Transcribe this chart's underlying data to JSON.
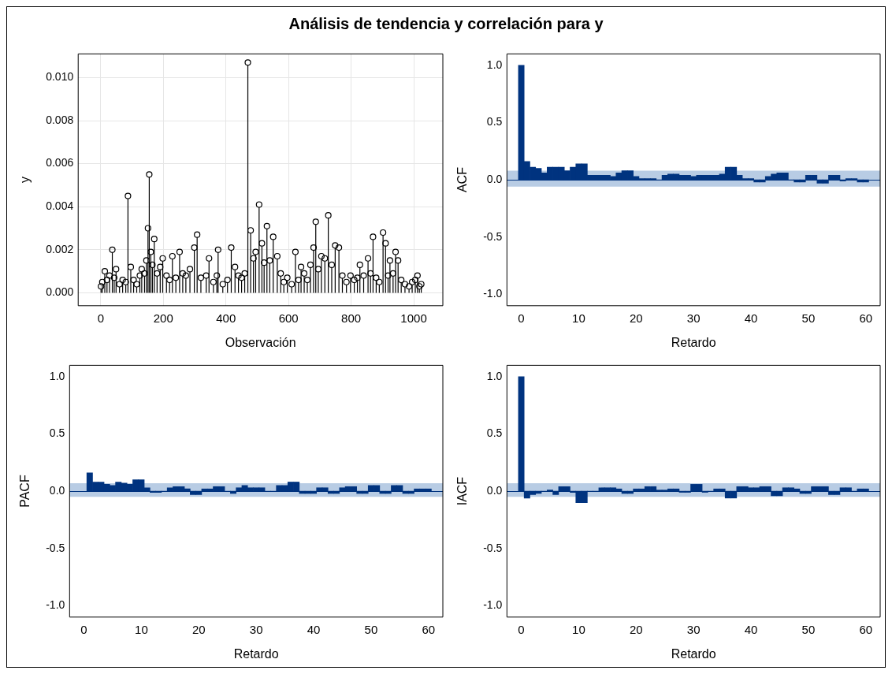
{
  "chart_data": [
    {
      "type": "lollipop",
      "title": "Análisis de tendencia y correlación para y",
      "xlabel": "Observación",
      "ylabel": "y",
      "color": "#000000",
      "marker": "circle",
      "grid": true,
      "x": [
        1,
        5,
        13,
        20,
        28,
        37,
        43,
        49,
        60,
        70,
        80,
        87,
        96,
        105,
        115,
        125,
        131,
        140,
        146,
        151,
        155,
        160,
        165,
        171,
        180,
        190,
        198,
        210,
        220,
        229,
        240,
        252,
        262,
        272,
        285,
        299,
        308,
        320,
        337,
        346,
        360,
        371,
        375,
        390,
        405,
        417,
        429,
        440,
        450,
        460,
        470,
        479,
        488,
        495,
        506,
        515,
        522,
        531,
        540,
        551,
        564,
        575,
        585,
        596,
        610,
        622,
        632,
        640,
        650,
        660,
        670,
        680,
        687,
        695,
        705,
        716,
        727,
        738,
        749,
        761,
        772,
        785,
        798,
        810,
        820,
        828,
        840,
        854,
        862,
        870,
        880,
        890,
        902,
        910,
        918,
        924,
        934,
        942,
        950,
        960,
        972,
        985,
        995,
        1005,
        1012,
        1018,
        1024
      ],
      "values": [
        0.0003,
        0.0005,
        0.001,
        0.0006,
        0.0008,
        0.002,
        0.0007,
        0.0011,
        0.0004,
        0.0006,
        0.0005,
        0.0045,
        0.0012,
        0.0006,
        0.0004,
        0.0008,
        0.0011,
        0.0009,
        0.0015,
        0.003,
        0.0055,
        0.0019,
        0.0013,
        0.0025,
        0.0009,
        0.0012,
        0.0016,
        0.0008,
        0.0006,
        0.0017,
        0.0007,
        0.0019,
        0.0009,
        0.0008,
        0.0011,
        0.0021,
        0.0027,
        0.0007,
        0.0008,
        0.0016,
        0.0005,
        0.0008,
        0.002,
        0.0004,
        0.0006,
        0.0021,
        0.0012,
        0.0008,
        0.0007,
        0.0009,
        0.0107,
        0.0029,
        0.0016,
        0.0019,
        0.0041,
        0.0023,
        0.0014,
        0.0031,
        0.0015,
        0.0026,
        0.0017,
        0.0009,
        0.0005,
        0.0007,
        0.0004,
        0.0019,
        0.0006,
        0.0012,
        0.0009,
        0.0006,
        0.0013,
        0.0021,
        0.0033,
        0.0011,
        0.0017,
        0.0016,
        0.0036,
        0.0013,
        0.0022,
        0.0021,
        0.0008,
        0.0005,
        0.0008,
        0.0006,
        0.0007,
        0.0013,
        0.0008,
        0.0016,
        0.0009,
        0.0026,
        0.0007,
        0.0005,
        0.0028,
        0.0023,
        0.0008,
        0.0015,
        0.0009,
        0.0019,
        0.0015,
        0.0006,
        0.0004,
        0.0003,
        0.0005,
        0.0006,
        0.0008,
        0.0003,
        0.0004
      ],
      "xlim": [
        -72,
        1093
      ],
      "xticks": [
        0,
        200,
        400,
        600,
        800,
        1000
      ],
      "ylim": [
        -0.0006,
        0.0111
      ],
      "yticks": [
        {
          "value": 0,
          "label": "0.000"
        },
        {
          "value": 0.002,
          "label": "0.002"
        },
        {
          "value": 0.004,
          "label": "0.004"
        },
        {
          "value": 0.006,
          "label": "0.006"
        },
        {
          "value": 0.008,
          "label": "0.008"
        },
        {
          "value": 0.01,
          "label": "0.010"
        }
      ]
    },
    {
      "type": "bar",
      "xlabel": "Retardo",
      "ylabel": "ACF",
      "color": "#00337f",
      "x": [
        0,
        1,
        2,
        3,
        4,
        5,
        6,
        7,
        8,
        9,
        10,
        11,
        12,
        13,
        14,
        15,
        16,
        17,
        18,
        19,
        20,
        21,
        22,
        23,
        24,
        25,
        26,
        27,
        28,
        29,
        30,
        31,
        32,
        33,
        34,
        35,
        36,
        37,
        38,
        39,
        40,
        41,
        42,
        43,
        44,
        45,
        46,
        47,
        48,
        49,
        50,
        51,
        52,
        53,
        54,
        55,
        56,
        57,
        58,
        59,
        60
      ],
      "values": [
        1.0,
        0.16,
        0.11,
        0.1,
        0.06,
        0.11,
        0.11,
        0.11,
        0.08,
        0.11,
        0.14,
        0.14,
        0.04,
        0.04,
        0.04,
        0.04,
        0.03,
        0.06,
        0.08,
        0.08,
        0.03,
        0.01,
        0.01,
        0.01,
        0.0,
        0.04,
        0.05,
        0.05,
        0.04,
        0.04,
        0.03,
        0.04,
        0.04,
        0.04,
        0.04,
        0.05,
        0.11,
        0.11,
        0.04,
        0.01,
        0.01,
        -0.02,
        -0.02,
        0.03,
        0.05,
        0.06,
        0.06,
        0.0,
        -0.02,
        -0.02,
        0.04,
        0.04,
        -0.03,
        -0.03,
        0.04,
        0.04,
        -0.01,
        0.01,
        0.01,
        -0.02,
        -0.02
      ],
      "xlim": [
        -2.5,
        62.5
      ],
      "xticks": [
        0,
        10,
        20,
        30,
        40,
        50,
        60
      ],
      "ylim": [
        -1.1,
        1.1
      ],
      "yticks": [
        {
          "value": -1,
          "label": "-1.0"
        },
        {
          "value": -0.5,
          "label": "-0.5"
        },
        {
          "value": 0,
          "label": "0.0"
        },
        {
          "value": 0.5,
          "label": "0.5"
        },
        {
          "value": 1,
          "label": "1.0"
        }
      ],
      "ref_lines": [
        {
          "axis": "y",
          "value": 0,
          "color": "#00337f"
        }
      ],
      "bands": [
        {
          "axis": "y",
          "from": -0.06,
          "to": 0.08,
          "color": "#b8cce4"
        }
      ]
    },
    {
      "type": "bar",
      "xlabel": "Retardo",
      "ylabel": "PACF",
      "color": "#00337f",
      "x": [
        1,
        2,
        3,
        4,
        5,
        6,
        7,
        8,
        9,
        10,
        11,
        12,
        13,
        14,
        15,
        16,
        17,
        18,
        19,
        20,
        21,
        22,
        23,
        24,
        25,
        26,
        27,
        28,
        29,
        30,
        31,
        32,
        33,
        34,
        35,
        36,
        37,
        38,
        39,
        40,
        41,
        42,
        43,
        44,
        45,
        46,
        47,
        48,
        49,
        50,
        51,
        52,
        53,
        54,
        55,
        56,
        57,
        58,
        59,
        60
      ],
      "values": [
        0.16,
        0.08,
        0.08,
        0.06,
        0.05,
        0.08,
        0.07,
        0.06,
        0.1,
        0.1,
        0.03,
        -0.01,
        -0.01,
        0.0,
        0.03,
        0.04,
        0.04,
        0.02,
        -0.03,
        -0.03,
        0.02,
        0.02,
        0.04,
        0.04,
        0.0,
        -0.02,
        0.03,
        0.05,
        0.03,
        0.03,
        0.03,
        0.0,
        0.0,
        0.05,
        0.05,
        0.08,
        0.08,
        -0.02,
        -0.02,
        -0.02,
        0.03,
        0.03,
        -0.02,
        -0.02,
        0.03,
        0.04,
        0.04,
        -0.02,
        -0.02,
        0.05,
        0.05,
        -0.02,
        -0.02,
        0.05,
        0.05,
        -0.02,
        -0.02,
        0.02,
        0.02,
        0.02
      ],
      "xlim": [
        -2.5,
        62.5
      ],
      "xticks": [
        0,
        10,
        20,
        30,
        40,
        50,
        60
      ],
      "ylim": [
        -1.1,
        1.1
      ],
      "yticks": [
        {
          "value": -1,
          "label": "-1.0"
        },
        {
          "value": -0.5,
          "label": "-0.5"
        },
        {
          "value": 0,
          "label": "0.0"
        },
        {
          "value": 0.5,
          "label": "0.5"
        },
        {
          "value": 1,
          "label": "1.0"
        }
      ],
      "ref_lines": [
        {
          "axis": "y",
          "value": 0,
          "color": "#00337f"
        }
      ],
      "bands": [
        {
          "axis": "y",
          "from": -0.05,
          "to": 0.07,
          "color": "#b8cce4"
        }
      ]
    },
    {
      "type": "bar",
      "xlabel": "Retardo",
      "ylabel": "IACF",
      "color": "#00337f",
      "x": [
        0,
        1,
        2,
        3,
        4,
        5,
        6,
        7,
        8,
        9,
        10,
        11,
        12,
        13,
        14,
        15,
        16,
        17,
        18,
        19,
        20,
        21,
        22,
        23,
        24,
        25,
        26,
        27,
        28,
        29,
        30,
        31,
        32,
        33,
        34,
        35,
        36,
        37,
        38,
        39,
        40,
        41,
        42,
        43,
        44,
        45,
        46,
        47,
        48,
        49,
        50,
        51,
        52,
        53,
        54,
        55,
        56,
        57,
        58,
        59,
        60
      ],
      "values": [
        1.0,
        -0.06,
        -0.03,
        -0.02,
        0.0,
        0.01,
        -0.03,
        0.04,
        0.04,
        -0.01,
        -0.1,
        -0.1,
        0.0,
        0.0,
        0.03,
        0.03,
        0.03,
        0.02,
        -0.02,
        -0.02,
        0.02,
        0.02,
        0.04,
        0.04,
        0.01,
        0.01,
        0.02,
        0.02,
        -0.01,
        -0.01,
        0.06,
        0.06,
        -0.01,
        0.0,
        0.02,
        0.02,
        -0.06,
        -0.06,
        0.04,
        0.04,
        0.03,
        0.03,
        0.04,
        0.04,
        -0.04,
        -0.04,
        0.03,
        0.03,
        0.02,
        -0.02,
        -0.02,
        0.04,
        0.04,
        0.04,
        -0.03,
        -0.03,
        0.03,
        0.03,
        0.0,
        0.02,
        0.02
      ],
      "xlim": [
        -2.5,
        62.5
      ],
      "xticks": [
        0,
        10,
        20,
        30,
        40,
        50,
        60
      ],
      "ylim": [
        -1.1,
        1.1
      ],
      "yticks": [
        {
          "value": -1,
          "label": "-1.0"
        },
        {
          "value": -0.5,
          "label": "-0.5"
        },
        {
          "value": 0,
          "label": "0.0"
        },
        {
          "value": 0.5,
          "label": "0.5"
        },
        {
          "value": 1,
          "label": "1.0"
        }
      ],
      "ref_lines": [
        {
          "axis": "y",
          "value": 0,
          "color": "#00337f"
        }
      ],
      "bands": [
        {
          "axis": "y",
          "from": -0.05,
          "to": 0.07,
          "color": "#b8cce4"
        }
      ]
    }
  ]
}
